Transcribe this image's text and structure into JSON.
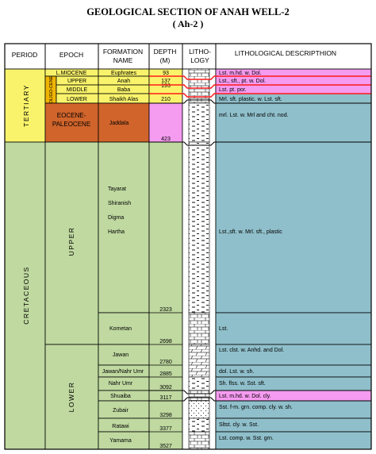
{
  "title": {
    "line1": "GEOLOGICAL SECTION OF ANAH WELL-2",
    "line2": "( Ah-2 )"
  },
  "headers": {
    "period": "PERIOD",
    "epoch": "EPOCH",
    "formation_1": "FORMATION",
    "formation_2": "NAME",
    "depth_1": "DEPTH",
    "depth_2": "(M)",
    "litho_1": "LITHO-",
    "litho_2": "LOGY",
    "desc": "LITHOLOGICAL  DESCRIPTHION"
  },
  "periods": {
    "tertiary": "TERTIARY",
    "cretaceous": "CRETACEOUS"
  },
  "epochs": {
    "lmiocene": "L.MIOCENE",
    "oligocene": "OLIGO-CENE",
    "upper_small": "UPPER",
    "middle_small": "MIDDLE",
    "lower_small": "LOWER",
    "eocene_1": "EOCENE-",
    "eocene_2": "PALEOCENE",
    "upper": "UPPER",
    "lower": "LOWER"
  },
  "formations": {
    "euphrates": "Euphrates",
    "anah": "Anah",
    "baba": "Baba",
    "shaikh_alas": "Shaikh Alas",
    "jaddala": "Jaddala",
    "tayarat": "Tayarat",
    "shiranish": "Shiranish",
    "digma": "Digma",
    "hartha": "Hartha",
    "kometan": "Kometan",
    "jawan": "Jawan",
    "jawan_nahr": "Jawan/Nahr Umr",
    "nahr_umr": "Nahr Umr",
    "shuaiba": "Shuaiba",
    "zubair": "Zubair",
    "ratawi": "Ratawi",
    "yamama": "Yamama"
  },
  "depths": {
    "d93": "93",
    "d137": "137",
    "d193": "193",
    "d210": "210",
    "d423": "423",
    "d2323": "2323",
    "d2698": "2698",
    "d2780": "2780",
    "d2885": "2885",
    "d3092": "3092",
    "d3117": "3117",
    "d3298": "3298",
    "d3377": "3377",
    "d3527": "3527"
  },
  "descriptions": {
    "euphrates": "Lst. m.hd. w. Dol.",
    "anah": "Lst., sft., pt. w. Dol.",
    "baba": "Lst. pt. por.",
    "shaikh_alas": "Mrl. sft. plastic. w. Lst. sft.",
    "jaddala": "mrl. Lst. w. Mrl and cht. nod.",
    "upper": "Lst.,sft. w. Mrl. sft., plastic",
    "kometan": "Lst.",
    "jawan": "Lst. clst. w. Anhd. and Dol.",
    "jawan_nahr": "dol. Lst. w. sh.",
    "nahr_umr": "Sh. flss. w. Sst. sft.",
    "shuaiba": "Lst. m.hd. w. Dol. cly.",
    "zubair": "Sst. f-m. grn. comp. cly. w. sh.",
    "ratawi": "Sltst. cly. w. Sst.",
    "yamama": "Lst. comp. w. Sst. grn."
  },
  "colors": {
    "yellow": "#f9f36b",
    "orange": "#f0b400",
    "brown": "#d0642b",
    "green": "#bfd9a0",
    "blue": "#8fbfca",
    "magenta": "#f59bf0",
    "red": "#ff1a1a"
  }
}
